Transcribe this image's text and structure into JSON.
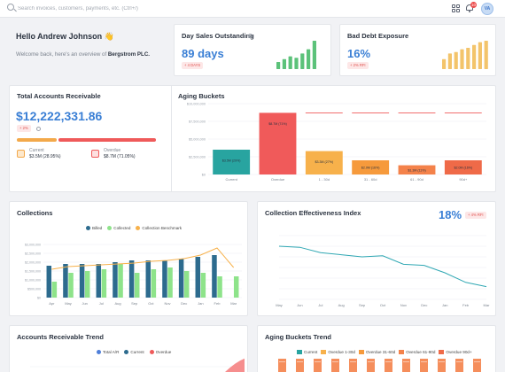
{
  "topbar": {
    "search_placeholder": "Search invoices, customers, payments, etc. (Ctrl+/)",
    "notification_count": "10",
    "avatar_initials": "VA"
  },
  "welcome": {
    "title": "Hello Andrew Johnson 👋",
    "subtitle_prefix": "Welcome back, here's an overview of ",
    "company": "Bergstrom PLC."
  },
  "dso": {
    "title": "Day Sales Outstanding",
    "value": "89 days",
    "badge": "+ 4 DAYS",
    "bar_levels": [
      0.25,
      0.35,
      0.45,
      0.4,
      0.55,
      0.7,
      1.0
    ],
    "color": "#5cc27a"
  },
  "bad_debt": {
    "title": "Bad Debt Exposure",
    "value": "16%",
    "badge": "+ 2% RFI",
    "bar_levels": [
      0.35,
      0.55,
      0.6,
      0.7,
      0.75,
      0.85,
      0.95,
      1.0
    ],
    "color": "#f3c46b"
  },
  "ar_total": {
    "title": "Total Accounts Receivable",
    "value": "$12,222,331.86",
    "badge": "+ 2%",
    "current_share": 0.2895,
    "current_label": "Current",
    "current_value": "$3.5M (28.95%)",
    "overdue_label": "Overdue",
    "overdue_value": "$8.7M (71.05%)",
    "current_color": "#f3a94a",
    "overdue_color": "#ef5a5a"
  },
  "aging_buckets": {
    "title": "Aging Buckets",
    "chart_data": {
      "type": "bar",
      "categories": [
        "Current",
        "Overdue",
        "1 - 30d",
        "31 - 60d",
        "61 - 90d",
        "90d+"
      ],
      "values": [
        3.5,
        8.7,
        3.3,
        2.0,
        1.3,
        2.0
      ],
      "bar_labels": [
        "$3.5M (29%)",
        "$8.7M (71%)",
        "$3.3M (27%)",
        "$2.0M (16%)",
        "$1.3M (11%)",
        "$2.0M (16%)"
      ],
      "overdue_marker": 8.7,
      "ylim": [
        0,
        9.5
      ],
      "yticks": [
        0,
        2.5,
        5,
        7.5,
        10
      ],
      "ytick_labels": [
        "$0",
        "$2,500,000",
        "$5,000,000",
        "$7,500,000",
        "$10,000,000"
      ],
      "colors": [
        "#28a4a0",
        "#f05a5a",
        "#f7b14b",
        "#f69a3c",
        "#f4824a",
        "#ef6a48"
      ]
    }
  },
  "collections": {
    "title": "Collections",
    "chart_data": {
      "type": "bar",
      "categories": [
        "Apr",
        "May",
        "Jun",
        "Jul",
        "Aug",
        "Sep",
        "Oct",
        "Nov",
        "Dec",
        "Jan",
        "Feb",
        "Mar"
      ],
      "ylim": [
        0,
        3.5
      ],
      "yticks": [
        0,
        0.5,
        1.0,
        1.5,
        2.0,
        2.5,
        3.0
      ],
      "ytick_labels": [
        "$0",
        "$500,000",
        "$1,000,000",
        "$1,500,000",
        "$2,000,000",
        "$2,500,000",
        "$3,000,000"
      ],
      "series": [
        {
          "name": "Billed",
          "values": [
            1.8,
            1.9,
            1.9,
            1.9,
            2.0,
            2.1,
            2.1,
            2.1,
            2.2,
            2.3,
            2.4,
            0
          ],
          "color": "#2d6b8e"
        },
        {
          "name": "Collected",
          "values": [
            0.9,
            1.4,
            1.5,
            1.6,
            1.9,
            1.4,
            1.6,
            1.7,
            1.5,
            1.4,
            1.2,
            1.2
          ],
          "color": "#8ee38a"
        },
        {
          "name": "Collection Benchmark",
          "values": [
            1.6,
            1.75,
            1.8,
            1.85,
            1.9,
            1.95,
            2.05,
            2.1,
            2.2,
            2.4,
            2.8,
            1.7
          ],
          "color": "#f7b14b"
        }
      ]
    }
  },
  "cei": {
    "title": "Collection Effectiveness Index",
    "value": "18%",
    "badge": "+ 4% RFI",
    "chart_data": {
      "type": "line",
      "x": [
        "May",
        "Jun",
        "Jul",
        "Aug",
        "Sep",
        "Oct",
        "Nov",
        "Dec",
        "Jan",
        "Feb",
        "Mar"
      ],
      "ylim": [
        0,
        60
      ],
      "values": [
        50,
        49,
        44,
        42,
        40,
        41,
        33,
        32,
        25,
        16,
        12
      ],
      "color": "#2fa7b3"
    }
  },
  "ar_trend": {
    "title": "Accounts Receivable Trend",
    "legend": [
      {
        "label": "Total A/R",
        "color": "#4f7fd9"
      },
      {
        "label": "Current",
        "color": "#2d6b8e"
      },
      {
        "label": "Overdue",
        "color": "#ef5a5a"
      }
    ]
  },
  "aging_trend": {
    "title": "Aging Buckets Trend",
    "legend": [
      {
        "label": "Current",
        "color": "#28a4a0"
      },
      {
        "label": "Overdue 1-30d",
        "color": "#f7b14b"
      },
      {
        "label": "Overdue 31-60d",
        "color": "#f69a3c"
      },
      {
        "label": "Overdue 61-90d",
        "color": "#f4824a"
      },
      {
        "label": "Overdue 90d+",
        "color": "#ef6a48"
      }
    ]
  }
}
